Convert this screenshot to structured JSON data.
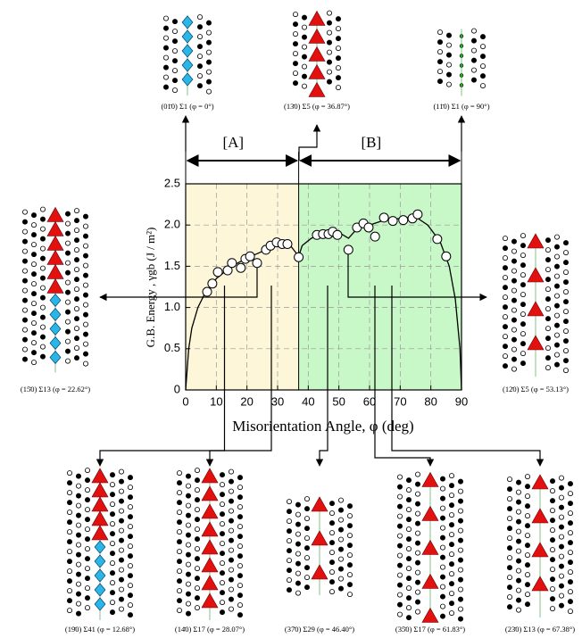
{
  "chart_data": {
    "type": "scatter",
    "xlabel": "Misorientation Angle, φ (deg)",
    "ylabel": "G.B. Energy , γgb (J / m²)",
    "xlim": [
      0,
      90
    ],
    "xticks": [
      0,
      10,
      20,
      30,
      40,
      50,
      60,
      70,
      80,
      90
    ],
    "ylim": [
      0,
      2.5
    ],
    "yticks": [
      0,
      0.5,
      {
        "value": 1,
        "label": "1.0"
      },
      1.5,
      {
        "value": 2,
        "label": "2.0"
      },
      2.5
    ],
    "grid": true,
    "regions": [
      {
        "label": "[A]",
        "range": [
          0,
          36.87
        ],
        "color": "#fdf6d8"
      },
      {
        "label": "[B]",
        "range": [
          36.87,
          90
        ],
        "color": "#c8f7c8"
      }
    ],
    "series": [
      {
        "type": "scatter",
        "color": "#ffffff",
        "x": [
          7,
          8.7,
          10.5,
          13.7,
          15.1,
          18,
          19.5,
          21,
          23.3,
          26.2,
          27.7,
          29.7,
          31.5,
          33.2,
          36.87,
          42.8,
          44.8,
          46.6,
          48,
          49.5,
          53.1,
          55.9,
          58,
          59.7,
          61.8,
          64.7,
          67.6,
          71,
          74,
          75.7,
          82.1,
          85
        ],
        "values": [
          1.19,
          1.29,
          1.43,
          1.45,
          1.54,
          1.48,
          1.59,
          1.62,
          1.54,
          1.7,
          1.75,
          1.79,
          1.77,
          1.77,
          1.61,
          1.88,
          1.89,
          1.89,
          1.92,
          1.88,
          1.7,
          1.97,
          2.02,
          1.97,
          1.86,
          2.09,
          2.05,
          2.06,
          2.08,
          2.13,
          1.83,
          1.62
        ]
      },
      {
        "type": "line",
        "color": "#000000",
        "x": [
          0,
          1,
          2,
          4,
          6,
          10,
          15,
          20,
          25,
          30,
          34,
          36.87,
          38,
          41,
          45,
          50,
          53.13,
          56,
          60,
          64,
          70,
          75,
          79,
          83,
          86,
          88,
          89.5,
          90
        ],
        "values": [
          0,
          0.5,
          0.75,
          1.0,
          1.15,
          1.35,
          1.5,
          1.6,
          1.68,
          1.75,
          1.76,
          1.62,
          1.75,
          1.84,
          1.89,
          1.91,
          1.84,
          1.96,
          2.0,
          2.05,
          2.08,
          2.1,
          2.0,
          1.8,
          1.5,
          1.1,
          0.5,
          0
        ]
      }
    ],
    "annotations": [
      {
        "text": "(01̄0) Σ1 (φ = 0°)"
      },
      {
        "text": "(13̄0) Σ5 (φ = 36.87°)"
      },
      {
        "text": "(11̄0) Σ1 (φ = 90°)"
      },
      {
        "text": "(15̄0) Σ13 (φ = 22.62°)"
      },
      {
        "text": "(12̄0) Σ5 (φ = 53.13°)"
      },
      {
        "text": "(19̄0) Σ41 (φ = 12.68°)"
      },
      {
        "text": "(14̄0) Σ17 (φ = 28.07°)"
      },
      {
        "text": "(37̄0) Σ29 (φ = 46.40°)"
      },
      {
        "text": "(35̄0) Σ17 (φ = 61.83°)"
      },
      {
        "text": "(23̄0) Σ13 (φ = 67.38°)"
      }
    ]
  }
}
